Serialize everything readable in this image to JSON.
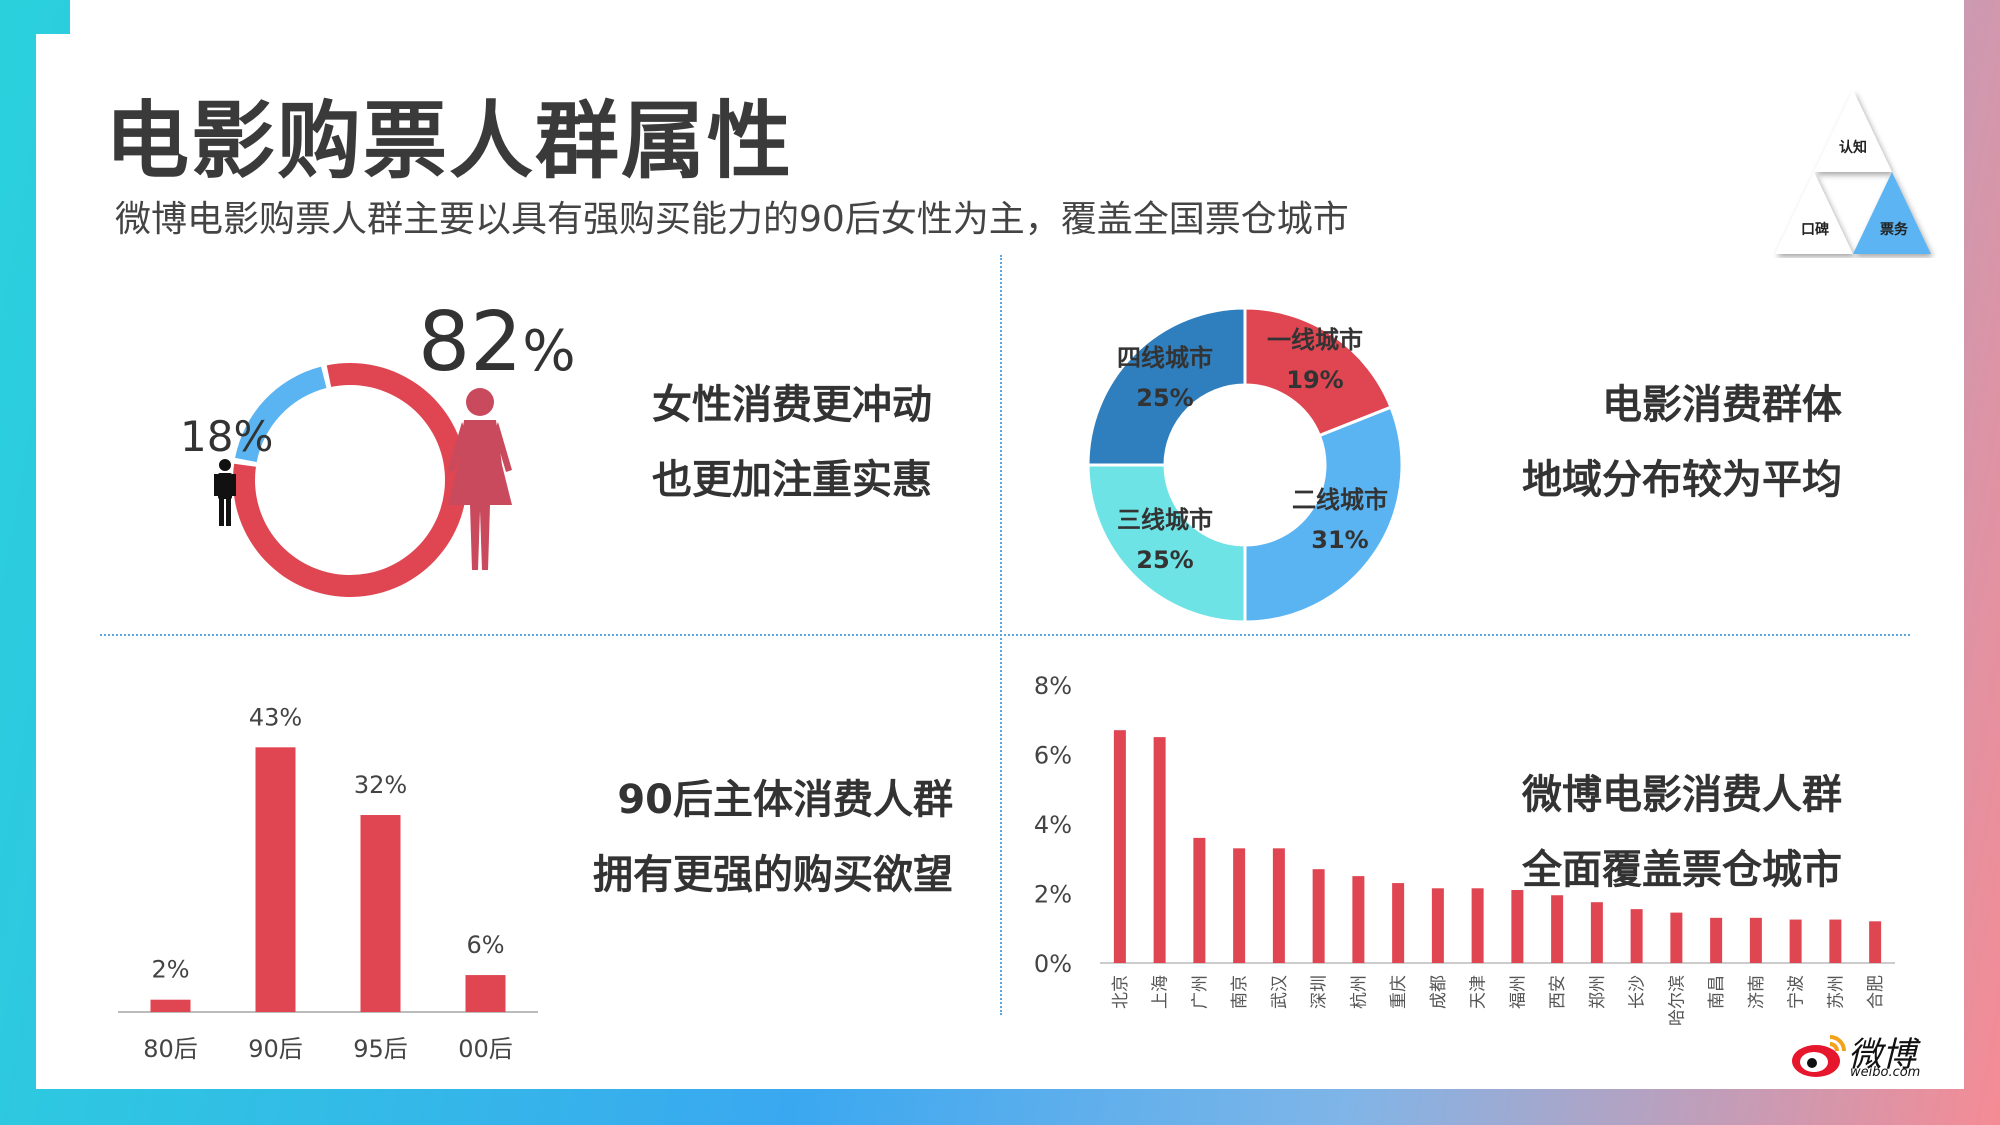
{
  "title": "电影购票人群属性",
  "subtitle": "微博电影购票人群主要以具有强购买能力的90后女性为主，覆盖全国票仓城市",
  "nav_triangle": {
    "top": "认知",
    "left": "口碑",
    "right": "票务"
  },
  "gender": {
    "female_value": "82",
    "female_unit": "%",
    "male_label": "18%",
    "note_line1": "女性消费更冲动",
    "note_line2": "也更加注重实惠"
  },
  "city_tier": {
    "note_line1": "电影消费群体",
    "note_line2": "地域分布较为平均"
  },
  "age": {
    "note_line1": "90后主体消费人群",
    "note_line2": "拥有更强的购买欲望"
  },
  "city": {
    "note_line1": "微博电影消费人群",
    "note_line2": "全面覆盖票仓城市"
  },
  "logo": {
    "name": "微博",
    "url": "weibo.com"
  },
  "colors": {
    "red": "#e04652",
    "blue": "#5bb4f2",
    "dark_blue": "#2f7fbf",
    "teal": "#6de3e6",
    "female": "#c84a5c"
  },
  "chart_data": [
    {
      "type": "pie",
      "title": "",
      "categories": [
        "女",
        "男"
      ],
      "values": [
        82,
        18
      ],
      "labels": [
        "82%",
        "18%"
      ]
    },
    {
      "type": "pie",
      "title": "",
      "categories": [
        "一线城市",
        "二线城市",
        "三线城市",
        "四线城市"
      ],
      "values": [
        19,
        31,
        25,
        25
      ],
      "labels": [
        "19%",
        "31%",
        "25%",
        "25%"
      ]
    },
    {
      "type": "bar",
      "title": "",
      "categories": [
        "80后",
        "90后",
        "95后",
        "00后"
      ],
      "values": [
        2,
        43,
        32,
        6
      ],
      "labels": [
        "2%",
        "43%",
        "32%",
        "6%"
      ],
      "ylim": [
        0,
        45
      ]
    },
    {
      "type": "bar",
      "title": "",
      "categories": [
        "北京",
        "上海",
        "广州",
        "南京",
        "武汉",
        "深圳",
        "杭州",
        "重庆",
        "成都",
        "天津",
        "福州",
        "西安",
        "郑州",
        "长沙",
        "哈尔滨",
        "南昌",
        "济南",
        "宁波",
        "苏州",
        "合肥"
      ],
      "values": [
        6.7,
        6.5,
        3.6,
        3.3,
        3.3,
        2.7,
        2.5,
        2.3,
        2.15,
        2.15,
        2.1,
        1.95,
        1.75,
        1.55,
        1.45,
        1.3,
        1.3,
        1.25,
        1.25,
        1.2
      ],
      "ylim": [
        0,
        8
      ],
      "yticks": [
        "0%",
        "2%",
        "4%",
        "6%",
        "8%"
      ],
      "ytick_values": [
        0,
        2,
        4,
        6,
        8
      ],
      "grid": false
    }
  ]
}
